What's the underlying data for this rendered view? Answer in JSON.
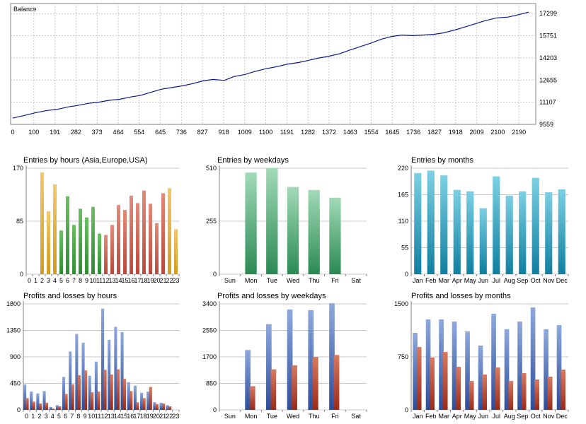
{
  "colors": {
    "balance_line": "#0a1a8c",
    "grid": "#c8c8c8",
    "axis": "#808080",
    "hours_asia": "#d29a1e",
    "hours_europe": "#2e8a32",
    "hours_usa": "#b9473a",
    "weekday_entries": "#3a9a60",
    "month_entries": "#1f93b0",
    "profit": "#4d6fb8",
    "loss": "#b8402c"
  },
  "chart_data": [
    {
      "id": "balance",
      "type": "line",
      "title": "Balance",
      "x_ticks": [
        "0",
        "100",
        "191",
        "282",
        "373",
        "464",
        "554",
        "645",
        "736",
        "827",
        "918",
        "1009",
        "1100",
        "1191",
        "1282",
        "1372",
        "1463",
        "1554",
        "1645",
        "1736",
        "1827",
        "1918",
        "2009",
        "2100",
        "2190"
      ],
      "y_ticks": [
        9559,
        11107,
        12655,
        14203,
        15751,
        17299
      ],
      "xlim": [
        0,
        2270
      ],
      "ylim": [
        9559,
        18000
      ],
      "grid": true,
      "x": [
        0,
        50,
        100,
        150,
        191,
        240,
        282,
        330,
        373,
        420,
        464,
        510,
        554,
        600,
        645,
        690,
        736,
        780,
        827,
        870,
        918,
        960,
        1009,
        1050,
        1100,
        1150,
        1191,
        1240,
        1282,
        1330,
        1372,
        1420,
        1463,
        1510,
        1554,
        1600,
        1645,
        1690,
        1736,
        1780,
        1827,
        1870,
        1918,
        1960,
        2009,
        2050,
        2100,
        2150,
        2190,
        2240
      ],
      "values": [
        10000,
        10180,
        10380,
        10530,
        10600,
        10780,
        10880,
        11030,
        11110,
        11240,
        11310,
        11470,
        11580,
        11800,
        12010,
        12130,
        12250,
        12400,
        12600,
        12700,
        12630,
        12900,
        13050,
        13250,
        13450,
        13600,
        13760,
        13880,
        14020,
        14200,
        14320,
        14500,
        14750,
        15000,
        15230,
        15510,
        15700,
        15800,
        15760,
        15800,
        15850,
        15950,
        16150,
        16350,
        16600,
        16800,
        17000,
        17050,
        17200,
        17400
      ]
    },
    {
      "id": "entries_hours",
      "type": "bar",
      "title": "Entries by hours (Asia,Europe,USA)",
      "categories": [
        "0",
        "1",
        "2",
        "3",
        "4",
        "5",
        "6",
        "7",
        "8",
        "9",
        "10",
        "11",
        "12",
        "13",
        "14",
        "15",
        "16",
        "17",
        "18",
        "19",
        "20",
        "21",
        "22",
        "23"
      ],
      "values": [
        0,
        0,
        163,
        101,
        144,
        70,
        125,
        79,
        105,
        91,
        108,
        65,
        63,
        79,
        111,
        103,
        126,
        114,
        134,
        113,
        82,
        130,
        138,
        72
      ],
      "region": [
        "",
        "",
        "asia",
        "asia",
        "asia",
        "europe",
        "europe",
        "europe",
        "europe",
        "europe",
        "europe",
        "europe",
        "usa",
        "usa",
        "usa",
        "usa",
        "usa",
        "usa",
        "usa",
        "usa",
        "usa",
        "usa",
        "asia",
        "asia"
      ],
      "y_ticks": [
        0,
        85,
        170
      ],
      "ylim": [
        0,
        170
      ]
    },
    {
      "id": "entries_weekdays",
      "type": "bar",
      "title": "Entries by weekdays",
      "categories": [
        "Sun",
        "Mon",
        "Tue",
        "Wed",
        "Thu",
        "Fri",
        "Sat"
      ],
      "values": [
        0,
        489,
        510,
        420,
        405,
        368,
        0
      ],
      "y_ticks": [
        0,
        255,
        510
      ],
      "ylim": [
        0,
        510
      ]
    },
    {
      "id": "entries_months",
      "type": "bar",
      "title": "Entries by months",
      "categories": [
        "Jan",
        "Feb",
        "Mar",
        "Apr",
        "May",
        "Jun",
        "Jul",
        "Aug",
        "Sep",
        "Oct",
        "Nov",
        "Dec"
      ],
      "values": [
        210,
        215,
        205,
        175,
        172,
        137,
        203,
        163,
        172,
        200,
        170,
        176
      ],
      "y_ticks": [
        0,
        55,
        110,
        165,
        220
      ],
      "ylim": [
        0,
        220
      ]
    },
    {
      "id": "pl_hours",
      "type": "bar",
      "title": "Profits and losses by hours",
      "categories": [
        "0",
        "1",
        "2",
        "3",
        "4",
        "5",
        "6",
        "7",
        "8",
        "9",
        "10",
        "11",
        "12",
        "13",
        "14",
        "15",
        "16",
        "17",
        "18",
        "19",
        "20",
        "21",
        "22",
        "23"
      ],
      "series": [
        {
          "values": [
            430,
            310,
            280,
            320,
            50,
            80,
            560,
            990,
            1290,
            1140,
            580,
            820,
            1720,
            1190,
            1410,
            1320,
            470,
            410,
            290,
            310,
            130,
            120,
            80,
            0
          ]
        },
        {
          "values": [
            200,
            140,
            110,
            120,
            20,
            60,
            270,
            430,
            590,
            670,
            300,
            310,
            680,
            600,
            690,
            530,
            320,
            130,
            200,
            390,
            100,
            110,
            60,
            0
          ]
        }
      ],
      "y_ticks": [
        0,
        450,
        900,
        1350,
        1800
      ],
      "ylim": [
        0,
        1800
      ]
    },
    {
      "id": "pl_weekdays",
      "type": "bar",
      "title": "Profits and losses by weekdays",
      "categories": [
        "Sun",
        "Mon",
        "Tue",
        "Wed",
        "Thu",
        "Fri",
        "Sat"
      ],
      "series": [
        {
          "values": [
            0,
            1920,
            2750,
            3220,
            3200,
            3420,
            0
          ]
        },
        {
          "values": [
            0,
            760,
            1300,
            1430,
            1700,
            1760,
            0
          ]
        }
      ],
      "y_ticks": [
        0,
        850,
        1700,
        2550,
        3400
      ],
      "ylim": [
        0,
        3400
      ]
    },
    {
      "id": "pl_months",
      "type": "bar",
      "title": "Profits and losses by months",
      "categories": [
        "Jan",
        "Feb",
        "Mar",
        "Apr",
        "May",
        "Jun",
        "Jul",
        "Aug",
        "Sep",
        "Oct",
        "Nov",
        "Dec"
      ],
      "series": [
        {
          "values": [
            1090,
            1280,
            1280,
            1250,
            1110,
            910,
            1360,
            1140,
            1250,
            1450,
            1140,
            1200
          ]
        },
        {
          "values": [
            890,
            740,
            820,
            610,
            410,
            500,
            600,
            410,
            520,
            430,
            470,
            570
          ]
        }
      ],
      "y_ticks": [
        0,
        750,
        1500
      ],
      "ylim": [
        0,
        1500
      ]
    }
  ]
}
